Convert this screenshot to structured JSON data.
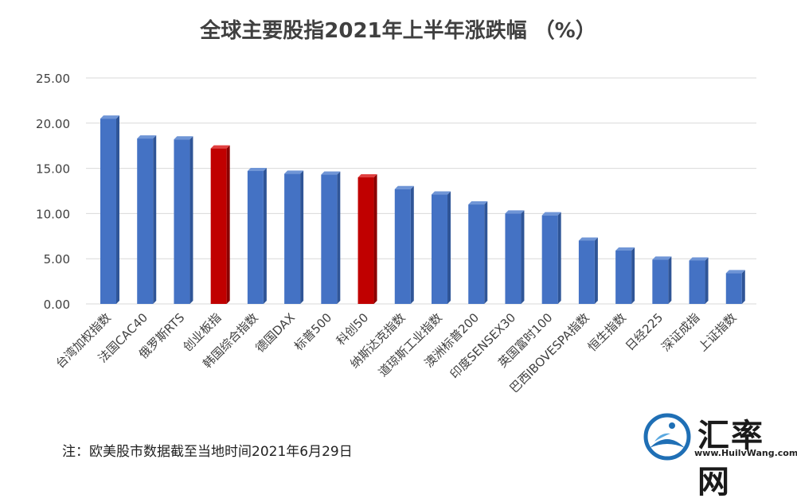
{
  "chart_data": {
    "type": "bar",
    "title": "全球主要股指2021年上半年涨跌幅 （%）",
    "xlabel": "",
    "ylabel": "",
    "ylim": [
      0,
      25
    ],
    "yticks": [
      "0.00",
      "5.00",
      "10.00",
      "15.00",
      "20.00",
      "25.00"
    ],
    "grid": true,
    "categories": [
      "台湾加权指数",
      "法国CAC40",
      "俄罗斯RTS",
      "创业板指",
      "韩国综合指数",
      "德国DAX",
      "标普500",
      "科创50",
      "纳斯达克指数",
      "道琼斯工业指数",
      "澳洲标普200",
      "印度SENSEX30",
      "英国富时100",
      "巴西IBOVESPA指数",
      "恒生指数",
      "日经225",
      "深证成指",
      "上证指数"
    ],
    "values": [
      20.5,
      18.3,
      18.2,
      17.2,
      14.7,
      14.4,
      14.3,
      14.0,
      12.7,
      12.1,
      11.0,
      10.0,
      9.8,
      7.0,
      5.9,
      4.9,
      4.8,
      3.4
    ],
    "colors": {
      "default": "#4472C4",
      "highlight": "#C00000",
      "highlighted_categories": [
        "创业板指",
        "科创50"
      ]
    }
  },
  "footer": {
    "note": "注：欧美股市数据截至当地时间2021年6月29日"
  },
  "logo": {
    "name": "汇率网",
    "url": "www.HuilvWang.com"
  }
}
